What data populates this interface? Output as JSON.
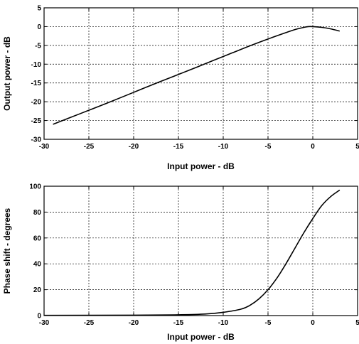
{
  "chart_data": [
    {
      "type": "line",
      "title": "",
      "xlabel": "Input power - dB",
      "ylabel": "Output power - dB",
      "xlim": [
        -30,
        5
      ],
      "ylim": [
        -30,
        5
      ],
      "x_ticks": [
        -30,
        -25,
        -20,
        -15,
        -10,
        -5,
        0,
        5
      ],
      "y_ticks": [
        -30,
        -25,
        -20,
        -15,
        -10,
        -5,
        0,
        5
      ],
      "grid": true,
      "series": [
        {
          "x": [
            -29,
            -26,
            -23,
            -20,
            -17,
            -14,
            -11,
            -9,
            -7,
            -5,
            -3,
            -2,
            -1,
            -0.5,
            0,
            1,
            2,
            3
          ],
          "y": [
            -26,
            -23.2,
            -20.4,
            -17.5,
            -14.6,
            -11.8,
            -8.9,
            -7.0,
            -5.1,
            -3.3,
            -1.6,
            -0.8,
            -0.2,
            0.0,
            0.0,
            -0.2,
            -0.6,
            -1.2
          ]
        }
      ]
    },
    {
      "type": "line",
      "title": "",
      "xlabel": "Input power - dB",
      "ylabel": "Phase shift - degrees",
      "xlim": [
        -30,
        5
      ],
      "ylim": [
        0,
        100
      ],
      "x_ticks": [
        -30,
        -25,
        -20,
        -15,
        -10,
        -5,
        0,
        5
      ],
      "y_ticks": [
        0,
        20,
        40,
        60,
        80,
        100
      ],
      "grid": true,
      "series": [
        {
          "x": [
            -30,
            -20,
            -15,
            -12,
            -10,
            -8,
            -7,
            -6,
            -5,
            -4,
            -3,
            -2,
            -1,
            0,
            1,
            2,
            3
          ],
          "y": [
            0.2,
            0.3,
            0.6,
            1.2,
            2.5,
            5,
            8,
            13,
            20,
            29,
            40,
            52,
            64,
            75,
            85,
            92,
            97
          ]
        }
      ]
    }
  ]
}
